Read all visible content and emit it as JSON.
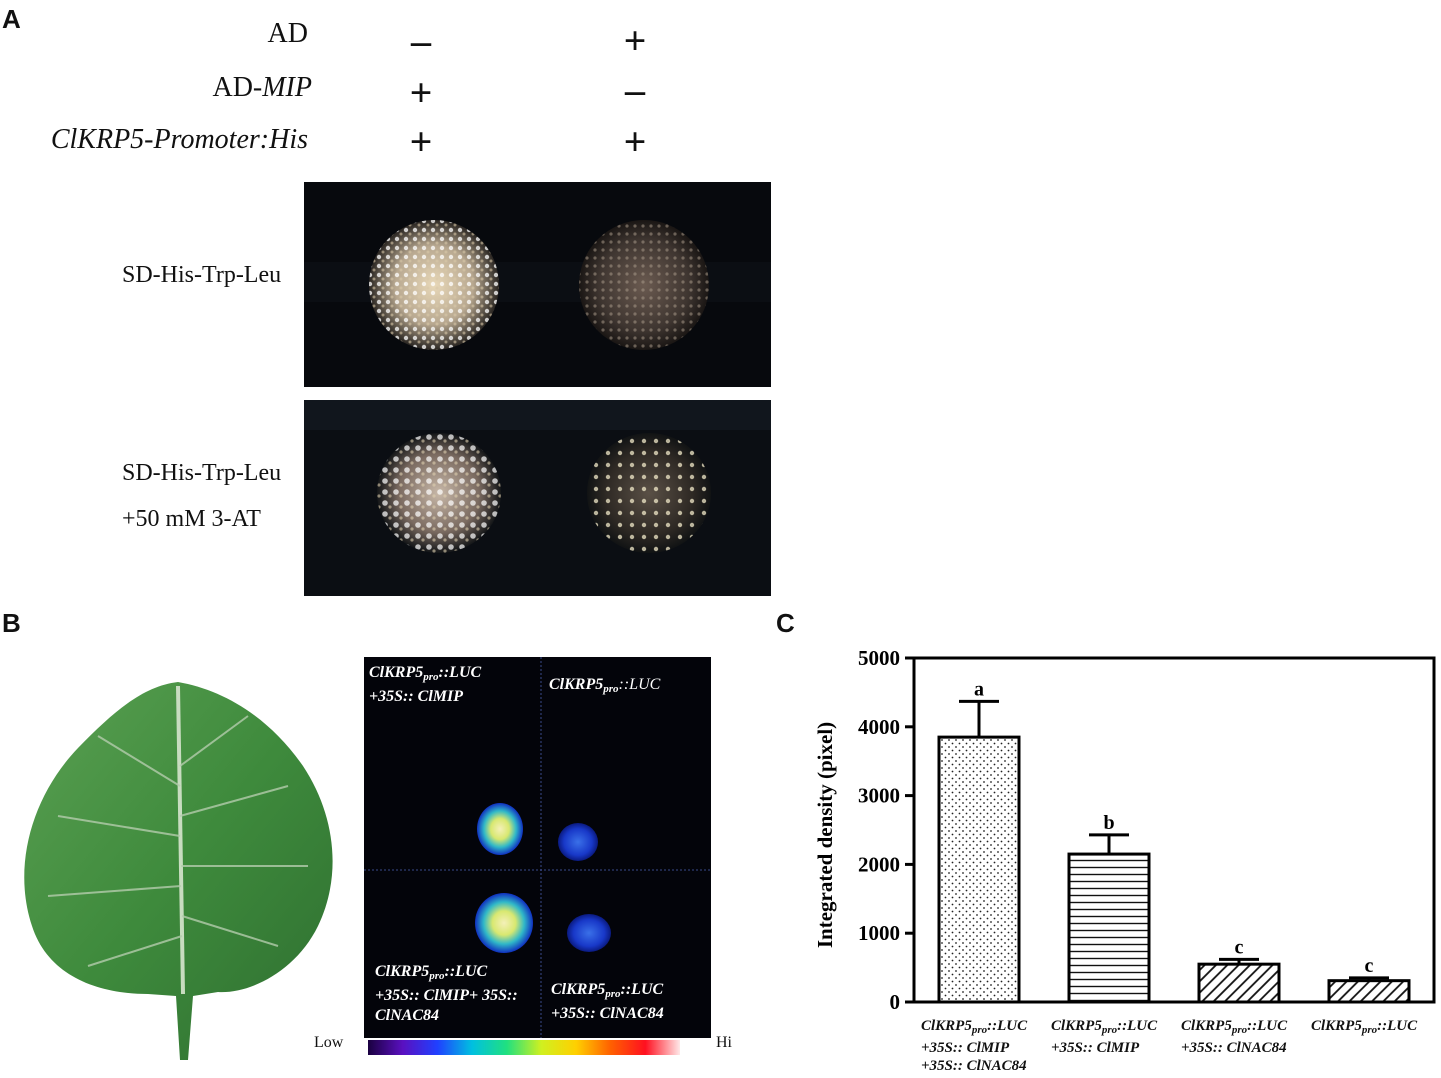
{
  "panels": {
    "a": "A",
    "b": "B",
    "c": "C"
  },
  "panel_a": {
    "rows": [
      {
        "label": "AD",
        "italic": false,
        "signs": [
          "–",
          "+"
        ]
      },
      {
        "label_prefix": "AD-",
        "label_italic": "MIP",
        "signs": [
          "+",
          "–"
        ]
      },
      {
        "label": "ClKRP5-Promoter:His",
        "italic": true,
        "signs": [
          "+",
          "+"
        ]
      }
    ],
    "plates": [
      {
        "label": "SD-His-Trp-Leu"
      },
      {
        "label": "SD-His-Trp-Leu",
        "label2": "+50 mM 3-AT"
      }
    ]
  },
  "panel_b": {
    "quadrants": {
      "tl": {
        "line1": "ClKRP5",
        "sub1": "pro",
        "rest1": "::LUC",
        "line2": "+35S:: ClMIP"
      },
      "tr": {
        "line1": "ClKRP5",
        "sub1": "pro",
        "rest1": "::LUC"
      },
      "bl": {
        "line1": "ClKRP5",
        "sub1": "pro",
        "rest1": "::LUC",
        "line2": "+35S:: ClMIP+ 35S::",
        "line3": "ClNAC84"
      },
      "br": {
        "line1": "ClKRP5",
        "sub1": "pro",
        "rest1": "::LUC",
        "line2": "+35S:: ClNAC84"
      }
    },
    "scale_low": "Low",
    "scale_high": "Hi"
  },
  "chart_data": {
    "type": "bar",
    "ylabel": "Integrated density (pixel)",
    "ylim": [
      0,
      5000
    ],
    "yticks": [
      0,
      1000,
      2000,
      3000,
      4000,
      5000
    ],
    "categories": [
      {
        "l1a": "ClKRP5",
        "l1sub": "pro",
        "l1b": "::LUC",
        "l2": "+35S:: ClMIP",
        "l3": "+35S:: ClNAC84"
      },
      {
        "l1a": "ClKRP5",
        "l1sub": "pro",
        "l1b": "::LUC",
        "l2": "+35S:: ClMIP"
      },
      {
        "l1a": "ClKRP5",
        "l1sub": "pro",
        "l1b": "::LUC",
        "l2": "+35S:: ClNAC84"
      },
      {
        "l1a": "ClKRP5",
        "l1sub": "pro",
        "l1b": "::LUC"
      }
    ],
    "values": [
      3850,
      2150,
      550,
      310
    ],
    "errors": [
      520,
      280,
      70,
      40
    ],
    "letters": [
      "a",
      "b",
      "c",
      "c"
    ],
    "patterns": [
      "dots",
      "horizontal",
      "diagonal",
      "diagonal"
    ]
  }
}
